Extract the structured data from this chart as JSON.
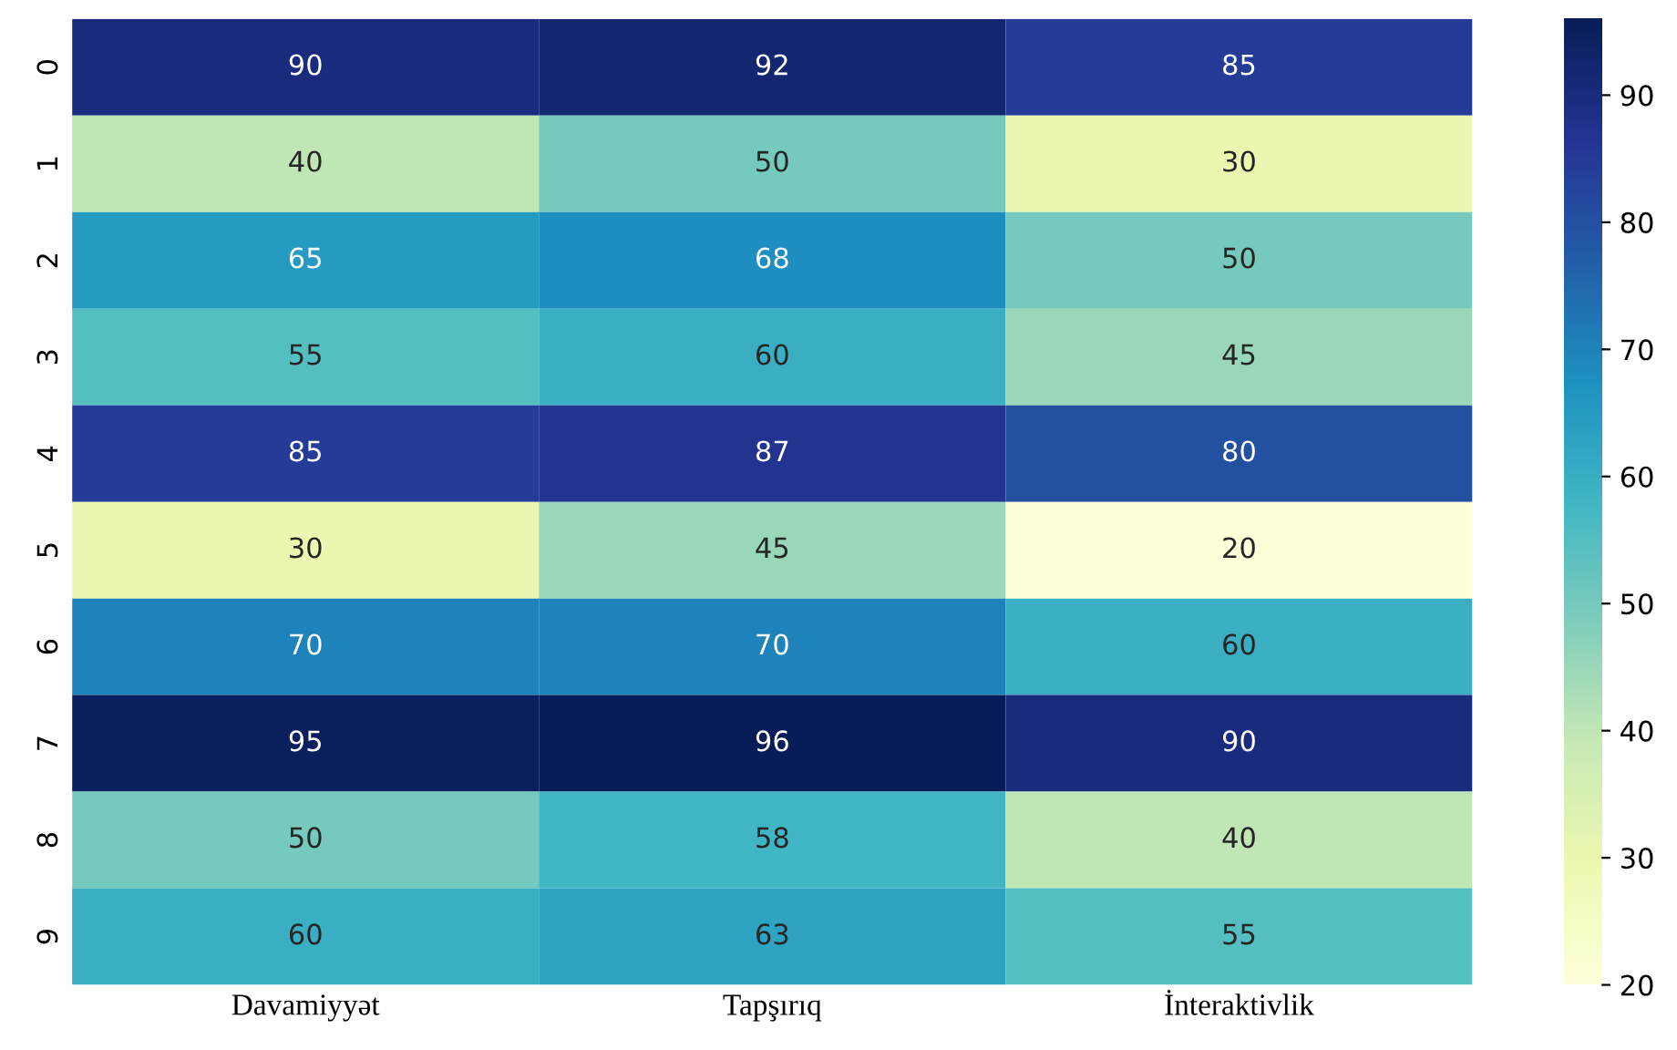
{
  "chart_data": {
    "type": "heatmap",
    "categories": [
      "Davamiyyət",
      "Tapşırıq",
      "İnteraktivlik"
    ],
    "y_categories": [
      "0",
      "1",
      "2",
      "3",
      "4",
      "5",
      "6",
      "7",
      "8",
      "9"
    ],
    "cells": [
      [
        90,
        92,
        85
      ],
      [
        40,
        50,
        30
      ],
      [
        65,
        68,
        50
      ],
      [
        55,
        60,
        45
      ],
      [
        85,
        87,
        80
      ],
      [
        30,
        45,
        20
      ],
      [
        70,
        70,
        60
      ],
      [
        95,
        96,
        90
      ],
      [
        50,
        58,
        40
      ],
      [
        60,
        63,
        55
      ]
    ],
    "clim": [
      20,
      96
    ],
    "cticks": [
      20,
      30,
      40,
      50,
      60,
      70,
      80,
      90
    ],
    "data_labels": true
  }
}
